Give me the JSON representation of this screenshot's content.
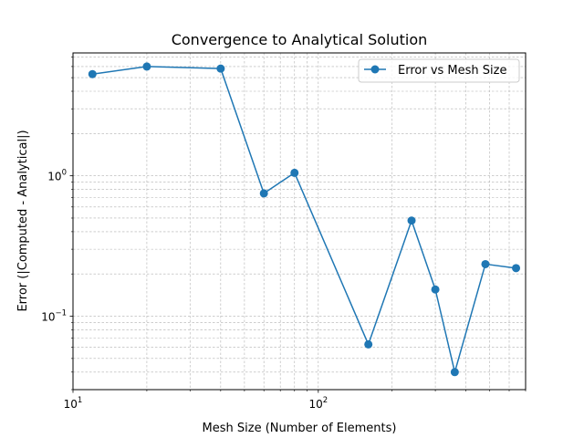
{
  "chart_data": {
    "type": "line",
    "title": "Convergence to Analytical Solution",
    "xlabel": "Mesh Size (Number of Elements)",
    "ylabel": "Error (|Computed - Analytical|)",
    "xscale": "log",
    "yscale": "log",
    "xlim": [
      10,
      700
    ],
    "ylim": [
      0.03,
      7.5
    ],
    "grid": true,
    "legend_position": "top-right",
    "x_ticks": [
      {
        "value": 10,
        "base": "10",
        "exp": "1"
      },
      {
        "value": 100,
        "base": "10",
        "exp": "2"
      }
    ],
    "y_ticks": [
      {
        "value": 0.1,
        "base": "10",
        "exp": "−1"
      },
      {
        "value": 1,
        "base": "10",
        "exp": "0"
      }
    ],
    "series": [
      {
        "name": "Error vs Mesh Size",
        "color": "#1f77b4",
        "marker": "circle",
        "x": [
          12,
          20,
          40,
          60,
          80,
          160,
          240,
          300,
          360,
          480,
          640
        ],
        "y": [
          5.3,
          6.0,
          5.8,
          0.75,
          1.05,
          0.063,
          0.48,
          0.155,
          0.04,
          0.235,
          0.22
        ]
      }
    ]
  }
}
